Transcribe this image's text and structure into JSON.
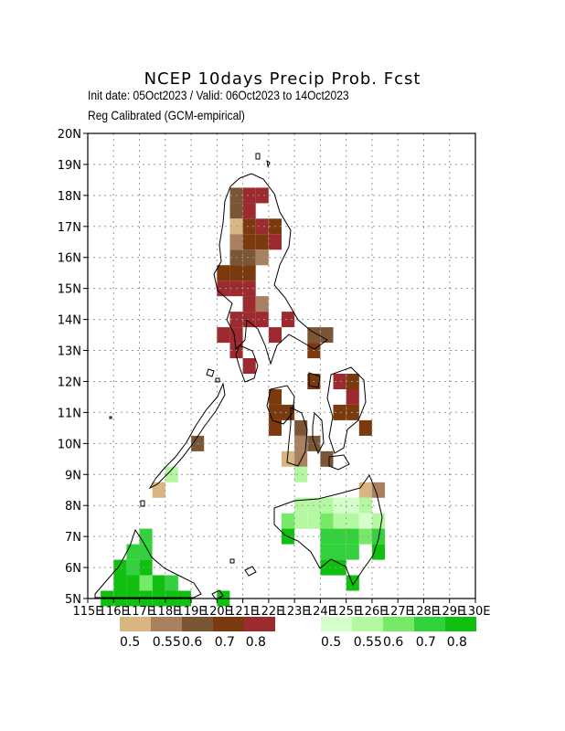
{
  "header": {
    "title": "NCEP 10days Precip Prob. Fcst",
    "subtitle1": "Init date: 05Oct2023 / Valid: 06Oct2023 to 14Oct2023",
    "subtitle2": "Reg Calibrated (GCM-empirical)"
  },
  "axes": {
    "lon_labels": [
      "115E",
      "116E",
      "117E",
      "118E",
      "119E",
      "120E",
      "121E",
      "122E",
      "123E",
      "124E",
      "125E",
      "126E",
      "127E",
      "128E",
      "129E",
      "130E"
    ],
    "lat_labels": [
      "5N",
      "6N",
      "7N",
      "8N",
      "9N",
      "10N",
      "11N",
      "12N",
      "13N",
      "14N",
      "15N",
      "16N",
      "17N",
      "18N",
      "19N",
      "20N"
    ],
    "lon_range": [
      115,
      130
    ],
    "lat_range": [
      5,
      20
    ],
    "grid": true
  },
  "legend": {
    "dry_colors": [
      "#d9b681",
      "#a98160",
      "#7b5636",
      "#7a3a0e",
      "#9c2a2e"
    ],
    "dry_labels": [
      "0.5",
      "0.55",
      "0.6",
      "0.7",
      "0.8"
    ],
    "wet_colors": [
      "#d4ffca",
      "#b4f8a2",
      "#76ea66",
      "#32d23c",
      "#10c010"
    ],
    "wet_labels": [
      "0.5",
      "0.55",
      "0.6",
      "0.7",
      "0.8"
    ]
  },
  "dry_cells": [
    [
      20.75,
      18.0,
      "#7b5636"
    ],
    [
      21.25,
      18.0,
      "#9c2a2e"
    ],
    [
      21.75,
      18.0,
      "#9c2a2e"
    ],
    [
      20.75,
      17.5,
      "#7b5636"
    ],
    [
      21.25,
      17.5,
      "#9c2a2e"
    ],
    [
      20.75,
      17.0,
      "#d9b681"
    ],
    [
      21.25,
      17.0,
      "#7a3a0e"
    ],
    [
      21.75,
      17.0,
      "#9c2a2e"
    ],
    [
      22.25,
      17.0,
      "#7a3a0e"
    ],
    [
      20.75,
      16.5,
      "#a98160"
    ],
    [
      21.25,
      16.5,
      "#7a3a0e"
    ],
    [
      21.75,
      16.5,
      "#7a3a0e"
    ],
    [
      22.25,
      16.5,
      "#9c2a2e"
    ],
    [
      20.75,
      16.0,
      "#7b5636"
    ],
    [
      21.25,
      16.0,
      "#7b5636"
    ],
    [
      21.75,
      16.0,
      "#a98160"
    ],
    [
      20.25,
      15.5,
      "#7a3a0e"
    ],
    [
      20.75,
      15.5,
      "#7a3a0e"
    ],
    [
      21.25,
      15.5,
      "#7a3a0e"
    ],
    [
      20.25,
      15.0,
      "#9c2a2e"
    ],
    [
      20.75,
      15.0,
      "#9c2a2e"
    ],
    [
      21.25,
      15.0,
      "#9c2a2e"
    ],
    [
      21.25,
      14.5,
      "#9c2a2e"
    ],
    [
      21.75,
      14.5,
      "#a98160"
    ],
    [
      20.75,
      14.0,
      "#9c2a2e"
    ],
    [
      21.25,
      14.0,
      "#9c2a2e"
    ],
    [
      21.75,
      14.0,
      "#9c2a2e"
    ],
    [
      22.75,
      14.0,
      "#9c2a2e"
    ],
    [
      20.25,
      13.5,
      "#9c2a2e"
    ],
    [
      20.75,
      13.5,
      "#9c2a2e"
    ],
    [
      22.25,
      13.5,
      "#9c2a2e"
    ],
    [
      23.75,
      13.5,
      "#7b5636"
    ],
    [
      24.25,
      13.5,
      "#7b5636"
    ],
    [
      20.75,
      13.0,
      "#9c2a2e"
    ],
    [
      23.75,
      13.0,
      "#7a3a0e"
    ],
    [
      21.25,
      12.5,
      "#9c2a2e"
    ],
    [
      23.75,
      12.0,
      "#7a3a0e"
    ],
    [
      24.75,
      12.0,
      "#9c2a2e"
    ],
    [
      25.25,
      12.0,
      "#7a3a0e"
    ],
    [
      22.25,
      11.5,
      "#7a3a0e"
    ],
    [
      25.25,
      11.5,
      "#9c2a2e"
    ],
    [
      22.25,
      11.0,
      "#7a3a0e"
    ],
    [
      22.75,
      11.0,
      "#7a3a0e"
    ],
    [
      24.75,
      11.0,
      "#7a3a0e"
    ],
    [
      25.25,
      11.0,
      "#7a3a0e"
    ],
    [
      22.25,
      10.5,
      "#7a3a0e"
    ],
    [
      23.25,
      10.5,
      "#7b5636"
    ],
    [
      25.75,
      10.5,
      "#7a3a0e"
    ],
    [
      23.25,
      10.0,
      "#a98160"
    ],
    [
      23.75,
      10.0,
      "#7b5636"
    ],
    [
      19.25,
      10.0,
      "#7b5636"
    ],
    [
      22.75,
      9.5,
      "#d9b681"
    ],
    [
      23.25,
      9.5,
      "#a98160"
    ],
    [
      24.25,
      9.5,
      "#7b5636"
    ],
    [
      17.75,
      8.5,
      "#d9b681"
    ],
    [
      25.75,
      8.5,
      "#d9b681"
    ],
    [
      26.25,
      8.5,
      "#a98160"
    ]
  ],
  "wet_cells": [
    [
      18.25,
      9.0,
      "#b4f8a2"
    ],
    [
      23.25,
      9.0,
      "#b4f8a2"
    ],
    [
      23.25,
      8.0,
      "#b4f8a2"
    ],
    [
      23.75,
      8.0,
      "#b4f8a2"
    ],
    [
      24.25,
      8.0,
      "#b4f8a2"
    ],
    [
      24.75,
      8.0,
      "#d4ffca"
    ],
    [
      25.25,
      8.0,
      "#d4ffca"
    ],
    [
      25.75,
      8.0,
      "#b4f8a2"
    ],
    [
      22.75,
      7.5,
      "#76ea66"
    ],
    [
      23.25,
      7.5,
      "#b4f8a2"
    ],
    [
      23.75,
      7.5,
      "#b4f8a2"
    ],
    [
      24.25,
      7.5,
      "#76ea66"
    ],
    [
      24.75,
      7.5,
      "#b4f8a2"
    ],
    [
      25.25,
      7.5,
      "#b4f8a2"
    ],
    [
      25.75,
      7.5,
      "#d4ffca"
    ],
    [
      26.25,
      7.5,
      "#b4f8a2"
    ],
    [
      17.25,
      7.0,
      "#32d23c"
    ],
    [
      22.75,
      7.0,
      "#10c010"
    ],
    [
      24.25,
      7.0,
      "#32d23c"
    ],
    [
      24.75,
      7.0,
      "#32d23c"
    ],
    [
      25.25,
      7.0,
      "#32d23c"
    ],
    [
      25.75,
      7.0,
      "#76ea66"
    ],
    [
      26.25,
      7.0,
      "#32d23c"
    ],
    [
      16.75,
      6.5,
      "#32d23c"
    ],
    [
      17.25,
      6.5,
      "#32d23c"
    ],
    [
      24.25,
      6.5,
      "#32d23c"
    ],
    [
      24.75,
      6.5,
      "#32d23c"
    ],
    [
      25.25,
      6.5,
      "#32d23c"
    ],
    [
      26.25,
      6.5,
      "#10c010"
    ],
    [
      16.25,
      6.0,
      "#10c010"
    ],
    [
      16.75,
      6.0,
      "#32d23c"
    ],
    [
      17.25,
      6.0,
      "#10c010"
    ],
    [
      24.25,
      6.0,
      "#10c010"
    ],
    [
      24.75,
      6.0,
      "#10c010"
    ],
    [
      16.25,
      5.5,
      "#10c010"
    ],
    [
      16.75,
      5.5,
      "#10c010"
    ],
    [
      17.25,
      5.5,
      "#76ea66"
    ],
    [
      17.75,
      5.5,
      "#10c010"
    ],
    [
      18.25,
      5.5,
      "#32d23c"
    ],
    [
      25.25,
      5.5,
      "#10c010"
    ],
    [
      15.75,
      5.0,
      "#10c010"
    ],
    [
      16.25,
      5.0,
      "#10c010"
    ],
    [
      16.75,
      5.0,
      "#10c010"
    ],
    [
      17.25,
      5.0,
      "#10c010"
    ],
    [
      17.75,
      5.0,
      "#10c010"
    ],
    [
      18.25,
      5.0,
      "#10c010"
    ],
    [
      18.75,
      5.0,
      "#10c010"
    ],
    [
      20.25,
      5.0,
      "#10c010"
    ]
  ]
}
